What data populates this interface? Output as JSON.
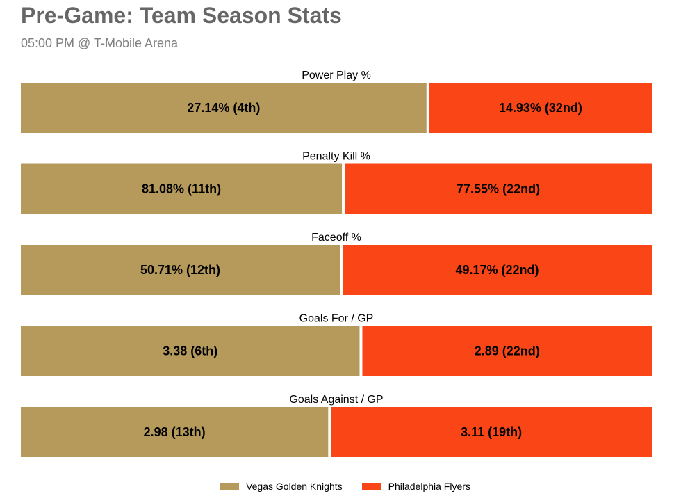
{
  "header": {
    "title": "Pre-Game: Team Season Stats",
    "subtitle": "05:00 PM @ T-Mobile Arena"
  },
  "colors": {
    "home": "#b59a5c",
    "away": "#fa4617"
  },
  "chart_data": {
    "type": "bar",
    "orientation": "horizontal-stacked-share",
    "series": [
      {
        "name": "Vegas Golden Knights",
        "color": "#b59a5c"
      },
      {
        "name": "Philadelphia Flyers",
        "color": "#fa4617"
      }
    ],
    "metrics": [
      {
        "label": "Power Play %",
        "values": [
          27.14,
          14.93
        ],
        "display": [
          "27.14% (4th)",
          "14.93% (32nd)"
        ]
      },
      {
        "label": "Penalty Kill %",
        "values": [
          81.08,
          77.55
        ],
        "display": [
          "81.08% (11th)",
          "77.55% (22nd)"
        ]
      },
      {
        "label": "Faceoff %",
        "values": [
          50.71,
          49.17
        ],
        "display": [
          "50.71% (12th)",
          "49.17% (22nd)"
        ]
      },
      {
        "label": "Goals For / GP",
        "values": [
          3.38,
          2.89
        ],
        "display": [
          "3.38 (6th)",
          "2.89 (22nd)"
        ]
      },
      {
        "label": "Goals Against / GP",
        "values": [
          2.98,
          3.11
        ],
        "display": [
          "2.98 (13th)",
          "3.11 (19th)"
        ]
      }
    ],
    "legend": "bottom-center",
    "grid": false
  }
}
